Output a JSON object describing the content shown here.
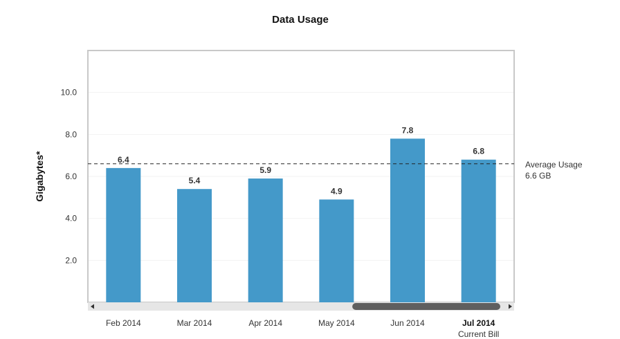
{
  "chart_data": {
    "type": "bar",
    "title": "Data Usage",
    "ylabel": "Gigabytes*",
    "xlabel": "",
    "ylim": [
      0,
      12
    ],
    "yticks": [
      "2.0",
      "4.0",
      "6.0",
      "8.0",
      "10.0"
    ],
    "categories": [
      "Feb 2014",
      "Mar 2014",
      "Apr 2014",
      "May 2014",
      "Jun 2014",
      "Jul 2014"
    ],
    "category_sublabels": [
      "",
      "",
      "",
      "",
      "",
      "Current Bill"
    ],
    "highlighted_category": "Jul 2014",
    "values": [
      6.4,
      5.4,
      5.9,
      4.9,
      7.8,
      6.8
    ],
    "value_labels": [
      "6.4",
      "5.4",
      "5.9",
      "4.9",
      "7.8",
      "6.8"
    ],
    "bar_color": "#4499c9",
    "grid": true,
    "reference_line": {
      "value": 6.6,
      "label": "Average Usage",
      "sublabel": "6.6 GB",
      "style": "dashed"
    },
    "scrollbar": {
      "visible": true,
      "position_fraction": 0.63,
      "size_fraction": 0.37
    }
  }
}
